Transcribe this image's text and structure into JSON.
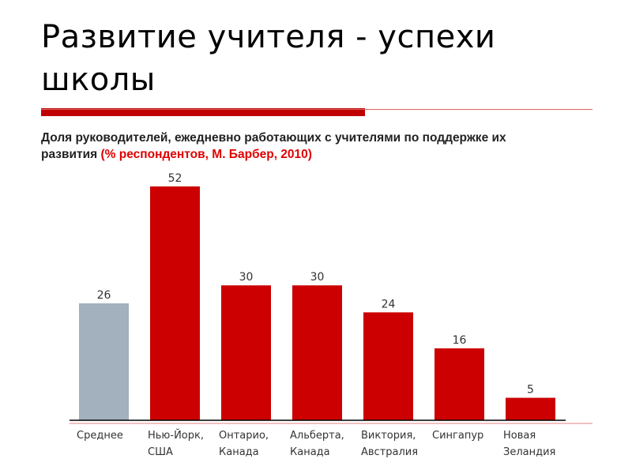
{
  "title": "Развитие учителя - успехи школы",
  "subtitle": {
    "text": "Доля руководителей, ежедневно работающих с учителями по поддержке их развития",
    "source": "(% респондентов, М. Барбер, 2010)"
  },
  "chart_data": {
    "type": "bar",
    "title": "Доля руководителей, ежедневно работающих с учителями по поддержке их развития (% респондентов, М. Барбер, 2010)",
    "categories": [
      "Среднее",
      "Нью-Йорк, США",
      "Онтарио, Канада",
      "Альберта, Канада",
      "Виктория, Австралия",
      "Сингапур",
      "Новая Зеландия"
    ],
    "category_lines": [
      [
        "Среднее"
      ],
      [
        "Нью-Йорк,",
        "США"
      ],
      [
        "Онтарио,",
        "Канада"
      ],
      [
        "Альберта,",
        "Канада"
      ],
      [
        "Виктория,",
        "Австралия"
      ],
      [
        "Сингапур"
      ],
      [
        "Новая",
        "Зеландия"
      ]
    ],
    "values": [
      26,
      52,
      30,
      30,
      24,
      16,
      5
    ],
    "colors": [
      "#a3b0bd",
      "#cc0000",
      "#cc0000",
      "#cc0000",
      "#cc0000",
      "#cc0000",
      "#cc0000"
    ],
    "xlabel": "",
    "ylabel": "",
    "ylim": [
      0,
      52
    ],
    "grid": false,
    "legend": "none"
  }
}
